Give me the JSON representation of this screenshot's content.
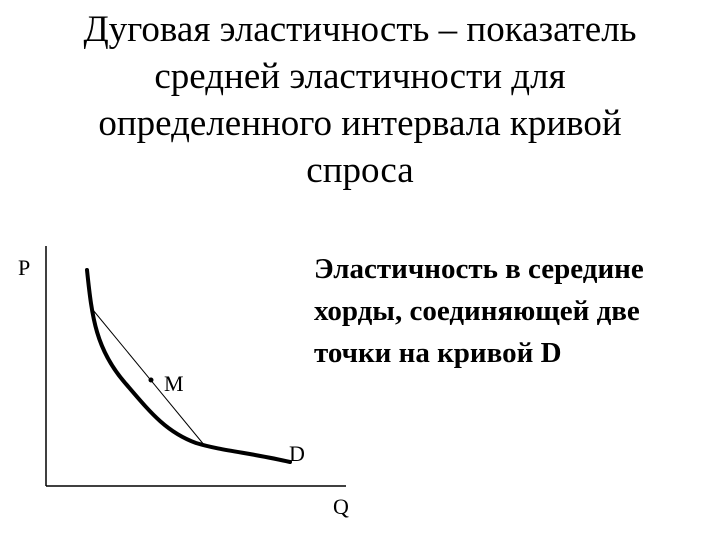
{
  "title": {
    "lines": [
      "Дуговая эластичность – показатель",
      "средней эластичности для",
      "определенного интервала кривой",
      "спроса"
    ]
  },
  "note": {
    "lines": [
      "Эластичность в середине",
      "хорды, соединяющей две",
      "точки на кривой D"
    ]
  },
  "diagram": {
    "axis_y_label": "P",
    "axis_x_label": "Q",
    "point_label": "M",
    "curve_label": "D",
    "line_color": "#000000"
  }
}
